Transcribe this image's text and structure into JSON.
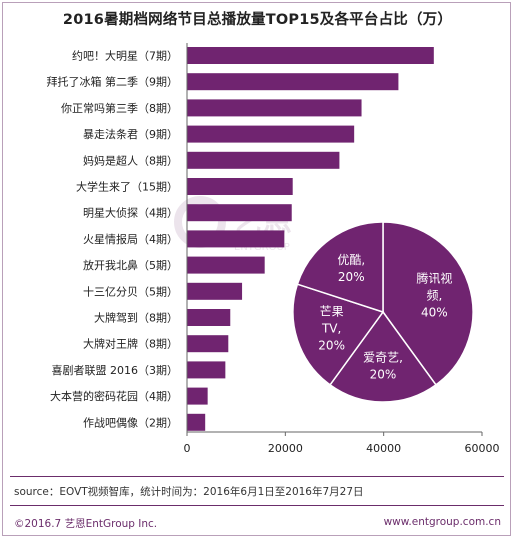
{
  "title": "2016暑期档网络节目总播放量TOP15及各平台占比（万）",
  "chart_data": [
    {
      "type": "bar",
      "orientation": "horizontal",
      "categories": [
        "约吧！大明星（7期）",
        "拜托了冰箱 第二季（9期）",
        "你正常吗第三季（8期）",
        "暴走法条君（9期）",
        "妈妈是超人（8期）",
        "大学生来了（15期）",
        "明星大侦探（4期）",
        "火星情报局（4期）",
        "放开我北鼻（5期）",
        "十三亿分贝（5期）",
        "大牌驾到（8期）",
        "大牌对王牌（8期）",
        "喜剧者联盟 2016（3期）",
        "大本营的密码花园（4期）",
        "作战吧偶像（2期）"
      ],
      "values": [
        50200,
        43000,
        35500,
        34000,
        31000,
        21500,
        21300,
        19800,
        15800,
        11200,
        8800,
        8400,
        7800,
        4200,
        3700
      ],
      "xlim": [
        0,
        60000
      ],
      "xticks": [
        "0",
        "20000",
        "40000",
        "60000"
      ],
      "bar_color": "#702470",
      "grid": false
    },
    {
      "type": "pie",
      "slices": [
        {
          "label": "腾讯视频",
          "label_lines": [
            "腾讯视",
            "频,"
          ],
          "pct_text": "40%",
          "value": 40
        },
        {
          "label": "爱奇艺",
          "label_lines": [
            "爱奇艺,"
          ],
          "pct_text": "20%",
          "value": 20
        },
        {
          "label": "芒果TV",
          "label_lines": [
            "芒果",
            "TV,"
          ],
          "pct_text": "20%",
          "value": 20
        },
        {
          "label": "优酷",
          "label_lines": [
            "优酷,"
          ],
          "pct_text": "20%",
          "value": 20
        }
      ],
      "slice_color": "#702470",
      "edge_color": "#ffffff"
    }
  ],
  "watermark": {
    "text": "艺恩",
    "subtext": "ENTGROUP"
  },
  "source": "source：EOVT视频智库，统计时间为：2016年6月1日至2016年7月27日",
  "footer": {
    "copyright": "©2016.7  艺恩EntGroup Inc.",
    "website": "www.entgroup.com.cn"
  }
}
